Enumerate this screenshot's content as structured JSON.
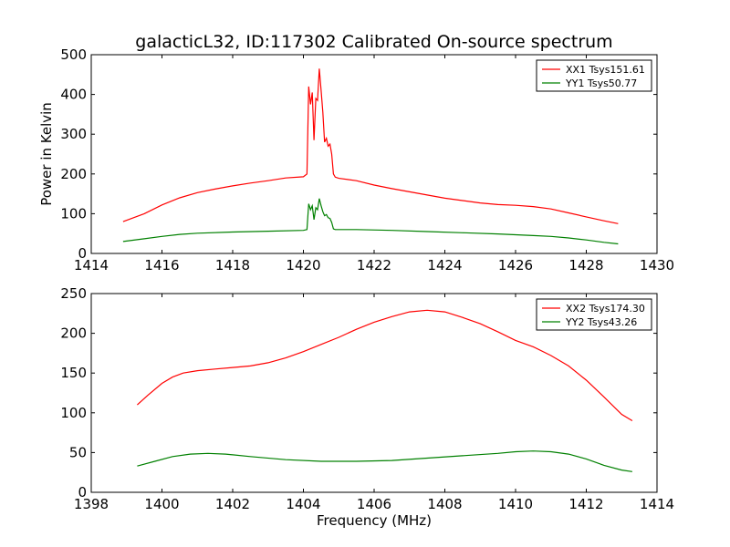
{
  "chart_data": [
    {
      "type": "line",
      "title": "galacticL32, ID:117302 Calibrated On-source spectrum",
      "xlabel": "",
      "ylabel": "Power in Kelvin",
      "xlim": [
        1414,
        1430
      ],
      "ylim": [
        0,
        500
      ],
      "xticks": [
        1414,
        1416,
        1418,
        1420,
        1422,
        1424,
        1426,
        1428,
        1430
      ],
      "yticks": [
        0,
        100,
        200,
        300,
        400,
        500
      ],
      "legend": "top-right",
      "series": [
        {
          "name": "XX1 Tsys151.61",
          "color": "#ff0000",
          "x": [
            1414.9,
            1415.5,
            1416.0,
            1416.5,
            1417.0,
            1417.5,
            1418.0,
            1418.5,
            1419.0,
            1419.5,
            1420.0,
            1420.1,
            1420.15,
            1420.2,
            1420.25,
            1420.3,
            1420.35,
            1420.4,
            1420.45,
            1420.5,
            1420.55,
            1420.6,
            1420.65,
            1420.7,
            1420.75,
            1420.8,
            1420.85,
            1420.9,
            1421.0,
            1421.5,
            1422.0,
            1422.5,
            1423.0,
            1423.5,
            1424.0,
            1424.5,
            1425.0,
            1425.5,
            1426.0,
            1426.5,
            1427.0,
            1427.5,
            1428.0,
            1428.5,
            1428.9
          ],
          "y": [
            80,
            100,
            122,
            140,
            153,
            162,
            170,
            177,
            183,
            190,
            193,
            200,
            420,
            375,
            405,
            285,
            390,
            385,
            465,
            410,
            355,
            280,
            290,
            270,
            275,
            250,
            200,
            192,
            189,
            183,
            172,
            163,
            155,
            147,
            139,
            133,
            127,
            123,
            121,
            118,
            112,
            102,
            92,
            82,
            75
          ]
        },
        {
          "name": "YY1 Tsys50.77",
          "color": "#008000",
          "x": [
            1414.9,
            1415.5,
            1416.0,
            1416.5,
            1417.0,
            1418.0,
            1419.0,
            1420.0,
            1420.1,
            1420.15,
            1420.2,
            1420.25,
            1420.3,
            1420.35,
            1420.4,
            1420.45,
            1420.5,
            1420.55,
            1420.6,
            1420.65,
            1420.7,
            1420.75,
            1420.8,
            1420.85,
            1420.9,
            1421.5,
            1422.5,
            1423.5,
            1424.5,
            1425.5,
            1426.5,
            1427.0,
            1427.5,
            1428.0,
            1428.5,
            1428.9
          ],
          "y": [
            30,
            37,
            43,
            48,
            51,
            54,
            56,
            58,
            60,
            125,
            110,
            120,
            85,
            115,
            110,
            138,
            120,
            105,
            95,
            98,
            90,
            88,
            78,
            62,
            60,
            60,
            58,
            55,
            52,
            49,
            45,
            43,
            39,
            34,
            28,
            24
          ]
        }
      ]
    },
    {
      "type": "line",
      "title": "",
      "xlabel": "Frequency (MHz)",
      "ylabel": "",
      "xlim": [
        1398,
        1414
      ],
      "ylim": [
        0,
        250
      ],
      "xticks": [
        1398,
        1400,
        1402,
        1404,
        1406,
        1408,
        1410,
        1412,
        1414
      ],
      "yticks": [
        0,
        50,
        100,
        150,
        200,
        250
      ],
      "legend": "top-right",
      "series": [
        {
          "name": "XX2 Tsys174.30",
          "color": "#ff0000",
          "x": [
            1399.3,
            1399.6,
            1400.0,
            1400.3,
            1400.6,
            1401.0,
            1401.5,
            1402.0,
            1402.5,
            1403.0,
            1403.5,
            1404.0,
            1404.5,
            1405.0,
            1405.5,
            1406.0,
            1406.5,
            1407.0,
            1407.5,
            1408.0,
            1408.5,
            1409.0,
            1409.5,
            1410.0,
            1410.5,
            1411.0,
            1411.5,
            1412.0,
            1412.5,
            1413.0,
            1413.3
          ],
          "y": [
            110,
            122,
            137,
            145,
            150,
            153,
            155,
            157,
            159,
            163,
            169,
            177,
            186,
            195,
            205,
            214,
            221,
            227,
            229,
            227,
            220,
            212,
            202,
            191,
            183,
            172,
            159,
            141,
            120,
            98,
            90
          ]
        },
        {
          "name": "YY2 Tsys43.26",
          "color": "#008000",
          "x": [
            1399.3,
            1399.8,
            1400.3,
            1400.8,
            1401.3,
            1401.8,
            1402.5,
            1403.5,
            1404.5,
            1405.5,
            1406.5,
            1407.5,
            1408.5,
            1409.5,
            1410.0,
            1410.5,
            1411.0,
            1411.5,
            1412.0,
            1412.5,
            1413.0,
            1413.3
          ],
          "y": [
            33,
            39,
            45,
            48,
            49,
            48,
            45,
            41,
            39,
            39,
            40,
            43,
            46,
            49,
            51,
            52,
            51,
            48,
            42,
            34,
            28,
            26
          ]
        }
      ]
    }
  ]
}
